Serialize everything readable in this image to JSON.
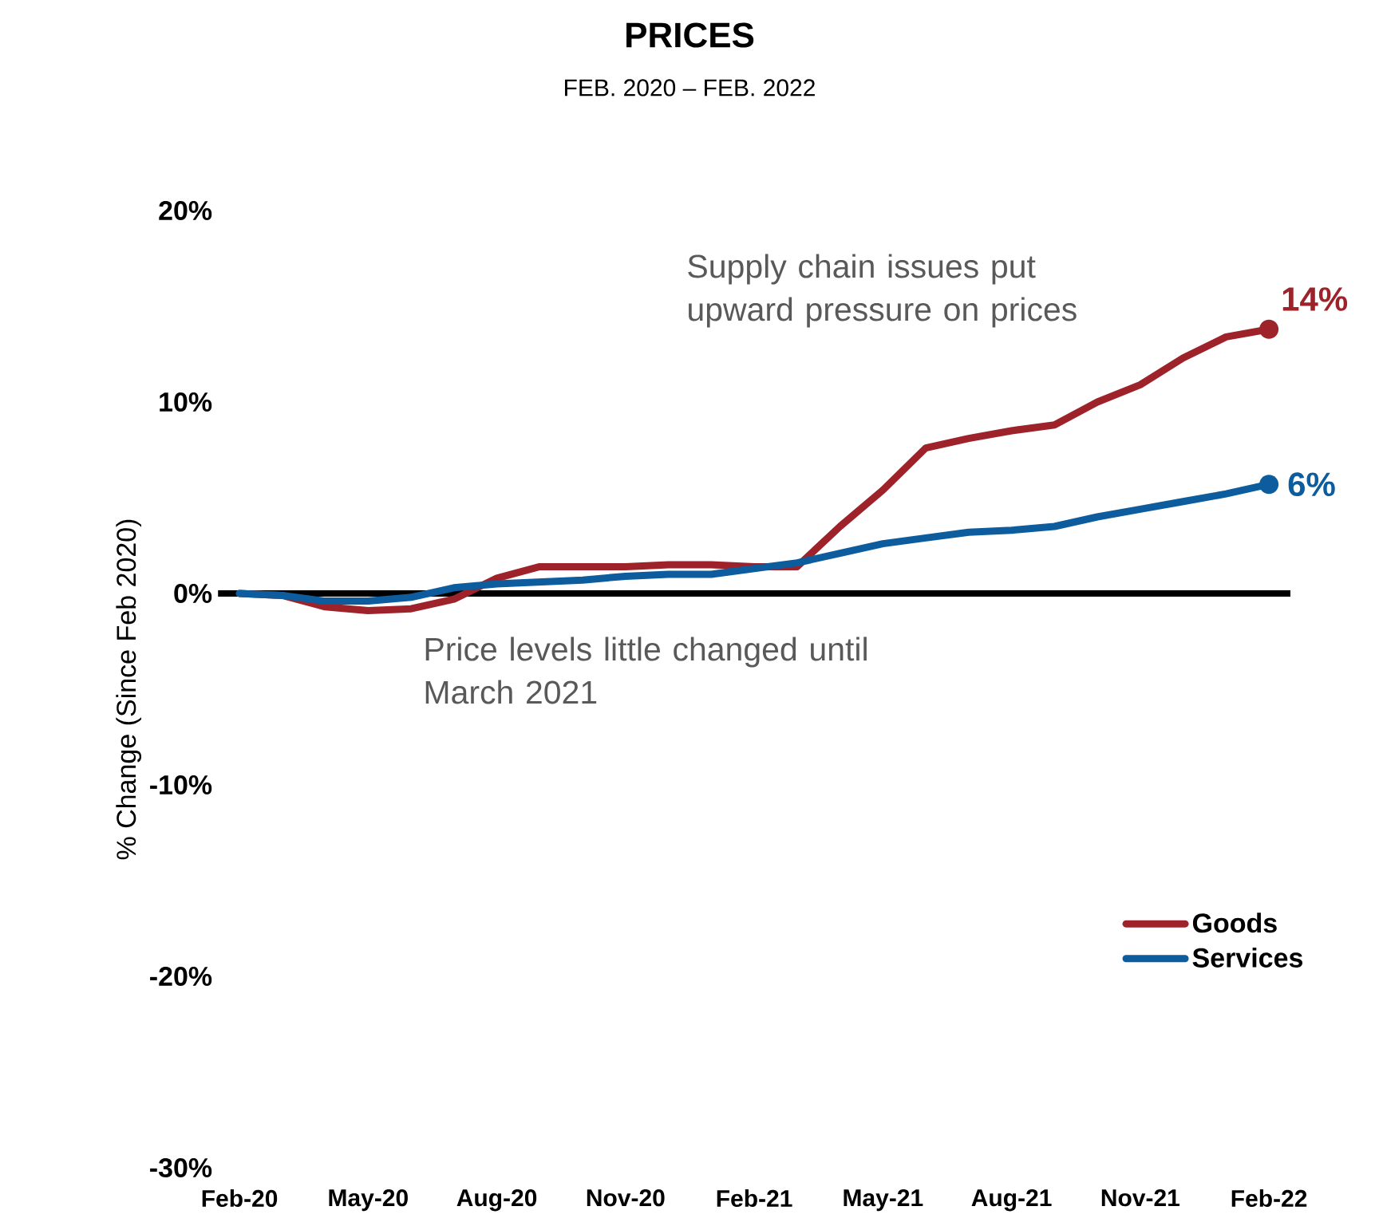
{
  "chart_data": {
    "type": "line",
    "title": "PRICES",
    "subtitle": "FEB. 2020 – FEB. 2022",
    "ylabel": "% Change (Since Feb 2020)",
    "categories": [
      "Feb-20",
      null,
      null,
      "May-20",
      null,
      null,
      "Aug-20",
      null,
      null,
      "Nov-20",
      null,
      null,
      "Feb-21",
      null,
      null,
      "May-21",
      null,
      null,
      "Aug-21",
      null,
      null,
      "Nov-21",
      null,
      null,
      "Feb-22"
    ],
    "series": [
      {
        "name": "Goods",
        "color": "#9E2229",
        "values": [
          0,
          -0.1,
          -0.7,
          -0.9,
          -0.8,
          -0.3,
          0.8,
          1.4,
          1.4,
          1.4,
          1.5,
          1.5,
          1.4,
          1.4,
          3.5,
          5.4,
          7.6,
          8.1,
          8.5,
          8.8,
          10.0,
          10.9,
          12.3,
          13.4,
          13.8
        ]
      },
      {
        "name": "Services",
        "color": "#0D5C9E",
        "values": [
          0,
          -0.1,
          -0.4,
          -0.4,
          -0.2,
          0.3,
          0.5,
          0.6,
          0.7,
          0.9,
          1.0,
          1.0,
          1.3,
          1.6,
          2.1,
          2.6,
          2.9,
          3.2,
          3.3,
          3.5,
          4.0,
          4.4,
          4.8,
          5.2,
          5.7
        ]
      }
    ],
    "ylim": [
      -30,
      20
    ],
    "yticks": [
      {
        "value": -30,
        "label": "-30%"
      },
      {
        "value": -20,
        "label": "-20%"
      },
      {
        "value": -10,
        "label": "-10%"
      },
      {
        "value": 0,
        "label": "0%"
      },
      {
        "value": 10,
        "label": "10%"
      },
      {
        "value": 20,
        "label": "20%"
      }
    ],
    "ref_lines": [
      {
        "axis": "y",
        "value": 0,
        "color": "#000000"
      }
    ],
    "annotations": [
      {
        "text": "14%",
        "x": "Feb-22",
        "y": 13.8
      },
      {
        "text": "6%",
        "x": "Feb-22",
        "y": 5.7
      },
      "Supply chain issues put upward pressure on prices",
      "Price levels little changed until March 2021"
    ],
    "legend": "bottom right",
    "grid": false,
    "line_style": "solid",
    "marker": "none"
  }
}
